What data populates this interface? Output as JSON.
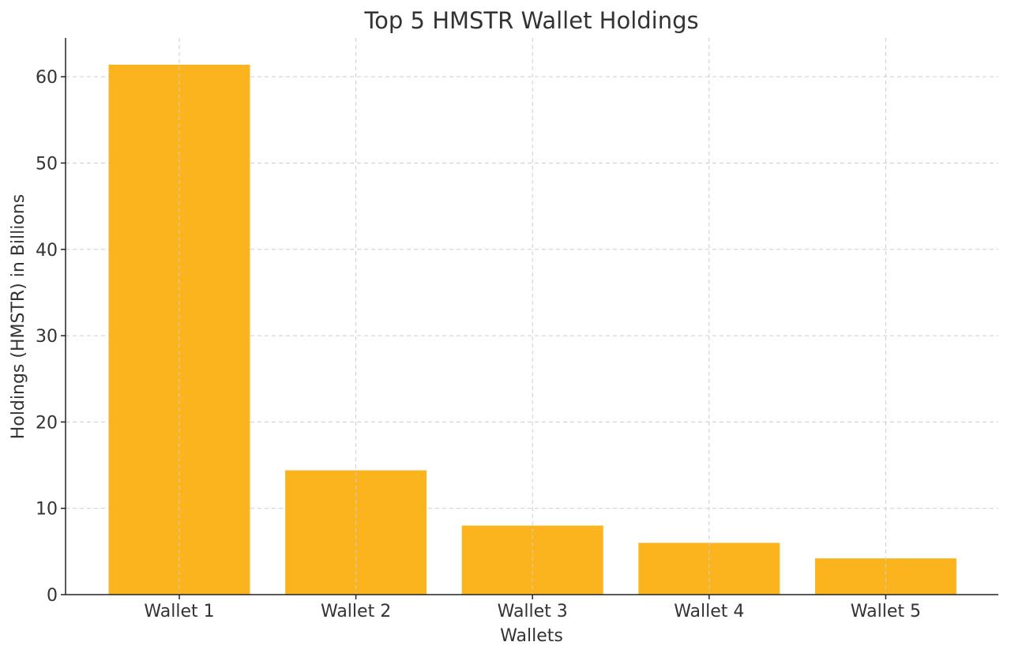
{
  "chart_data": {
    "type": "bar",
    "title": "Top 5 HMSTR Wallet Holdings",
    "xlabel": "Wallets",
    "ylabel": "Holdings (HMSTR) in Billions",
    "categories": [
      "Wallet 1",
      "Wallet 2",
      "Wallet 3",
      "Wallet 4",
      "Wallet 5"
    ],
    "values": [
      61.4,
      14.4,
      8.0,
      6.0,
      4.2
    ],
    "ylim": [
      0,
      64.5
    ],
    "yticks": [
      0,
      10,
      20,
      30,
      40,
      50,
      60
    ],
    "grid": true,
    "bar_color": "#fbb41e"
  }
}
